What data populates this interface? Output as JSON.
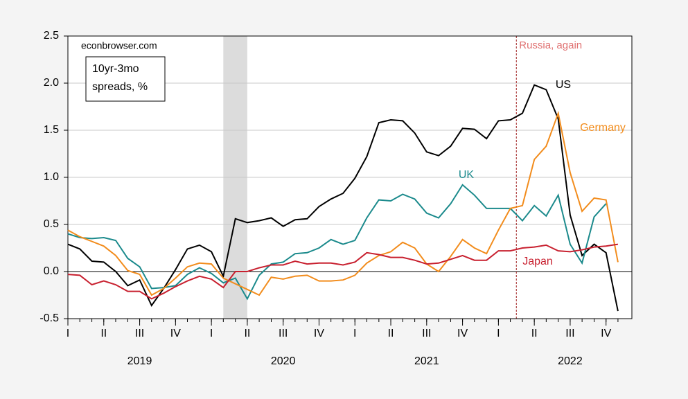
{
  "chart_data": {
    "type": "line",
    "annotations": {
      "source": "econbrowser.com",
      "box": [
        "10yr-3mo",
        "spreads, %"
      ],
      "event": "Russia, again"
    },
    "event_x": 2022.125,
    "recession": [
      2020.083,
      2020.25
    ],
    "x": [
      2019.0,
      2019.083,
      2019.167,
      2019.25,
      2019.333,
      2019.417,
      2019.5,
      2019.583,
      2019.667,
      2019.75,
      2019.833,
      2019.917,
      2020.0,
      2020.083,
      2020.167,
      2020.25,
      2020.333,
      2020.417,
      2020.5,
      2020.583,
      2020.667,
      2020.75,
      2020.833,
      2020.917,
      2021.0,
      2021.083,
      2021.167,
      2021.25,
      2021.333,
      2021.417,
      2021.5,
      2021.583,
      2021.667,
      2021.75,
      2021.833,
      2021.917,
      2022.0,
      2022.083,
      2022.167,
      2022.25,
      2022.333,
      2022.417,
      2022.5,
      2022.583,
      2022.667,
      2022.75,
      2022.833
    ],
    "series": [
      {
        "name": "US",
        "color": "#000000",
        "values": [
          0.29,
          0.24,
          0.11,
          0.1,
          0.0,
          -0.15,
          -0.09,
          -0.36,
          -0.18,
          0.02,
          0.24,
          0.28,
          0.21,
          -0.05,
          0.56,
          0.52,
          0.54,
          0.57,
          0.48,
          0.55,
          0.56,
          0.69,
          0.77,
          0.83,
          0.99,
          1.22,
          1.58,
          1.61,
          1.6,
          1.47,
          1.27,
          1.23,
          1.33,
          1.52,
          1.51,
          1.41,
          1.6,
          1.61,
          1.68,
          1.98,
          1.93,
          1.62,
          0.6,
          0.17,
          0.29,
          0.2,
          -0.42
        ]
      },
      {
        "name": "UK",
        "color": "#1b8a8c",
        "values": [
          0.4,
          0.36,
          0.35,
          0.36,
          0.33,
          0.14,
          0.05,
          -0.18,
          -0.17,
          -0.15,
          -0.03,
          0.04,
          -0.02,
          -0.12,
          -0.07,
          -0.29,
          -0.04,
          0.08,
          0.1,
          0.19,
          0.2,
          0.25,
          0.34,
          0.29,
          0.33,
          0.57,
          0.76,
          0.75,
          0.82,
          0.77,
          0.62,
          0.57,
          0.72,
          0.92,
          0.81,
          0.67,
          0.67,
          0.67,
          0.54,
          0.7,
          0.59,
          0.81,
          0.29,
          0.09,
          0.58,
          0.72,
          null
        ]
      },
      {
        "name": "Germany",
        "color": "#f28c1c",
        "values": [
          0.44,
          0.37,
          0.32,
          0.27,
          0.17,
          0.01,
          -0.03,
          -0.25,
          -0.18,
          -0.07,
          0.05,
          0.09,
          0.08,
          -0.07,
          -0.13,
          -0.19,
          -0.25,
          -0.06,
          -0.08,
          -0.05,
          -0.04,
          -0.1,
          -0.1,
          -0.09,
          -0.04,
          0.09,
          0.17,
          0.21,
          0.31,
          0.25,
          0.08,
          0.0,
          0.16,
          0.34,
          0.25,
          0.19,
          0.44,
          0.67,
          0.7,
          1.19,
          1.33,
          1.68,
          1.05,
          0.64,
          0.78,
          0.76,
          0.1
        ]
      },
      {
        "name": "Japan",
        "color": "#c8202f",
        "values": [
          -0.03,
          -0.04,
          -0.14,
          -0.1,
          -0.14,
          -0.21,
          -0.21,
          -0.29,
          -0.23,
          -0.16,
          -0.1,
          -0.05,
          -0.08,
          -0.17,
          0.0,
          0.0,
          0.04,
          0.07,
          0.07,
          0.11,
          0.08,
          0.09,
          0.09,
          0.07,
          0.1,
          0.2,
          0.18,
          0.15,
          0.15,
          0.12,
          0.08,
          0.09,
          0.13,
          0.17,
          0.12,
          0.12,
          0.22,
          0.22,
          0.25,
          0.26,
          0.28,
          0.22,
          0.21,
          0.23,
          0.26,
          0.27,
          0.29
        ]
      }
    ],
    "xlim": [
      2019,
      2022.93
    ],
    "xticks": [
      {
        "value": 2019,
        "label": "I"
      },
      {
        "value": 2019.25,
        "label": "II"
      },
      {
        "value": 2019.5,
        "label": "III"
      },
      {
        "value": 2019.75,
        "label": "IV"
      },
      {
        "value": 2020,
        "label": "I"
      },
      {
        "value": 2020.25,
        "label": "II"
      },
      {
        "value": 2020.5,
        "label": "III"
      },
      {
        "value": 2020.75,
        "label": "IV"
      },
      {
        "value": 2021,
        "label": "I"
      },
      {
        "value": 2021.25,
        "label": "II"
      },
      {
        "value": 2021.5,
        "label": "III"
      },
      {
        "value": 2021.75,
        "label": "IV"
      },
      {
        "value": 2022,
        "label": "I"
      },
      {
        "value": 2022.25,
        "label": "II"
      },
      {
        "value": 2022.5,
        "label": "III"
      },
      {
        "value": 2022.75,
        "label": "IV"
      }
    ],
    "year_labels": [
      {
        "value": 2019.5,
        "label": "2019"
      },
      {
        "value": 2020.5,
        "label": "2020"
      },
      {
        "value": 2021.5,
        "label": "2021"
      },
      {
        "value": 2022.5,
        "label": "2022"
      }
    ],
    "ylim": [
      -0.5,
      2.5
    ],
    "yticks": [
      {
        "value": -0.5,
        "label": "-0.5"
      },
      {
        "value": 0,
        "label": "0.0"
      },
      {
        "value": 0.5,
        "label": "0.5"
      },
      {
        "value": 1,
        "label": "1.0"
      },
      {
        "value": 1.5,
        "label": "1.5"
      },
      {
        "value": 2,
        "label": "2.0"
      },
      {
        "value": 2.5,
        "label": "2.5"
      }
    ],
    "grid": true
  }
}
